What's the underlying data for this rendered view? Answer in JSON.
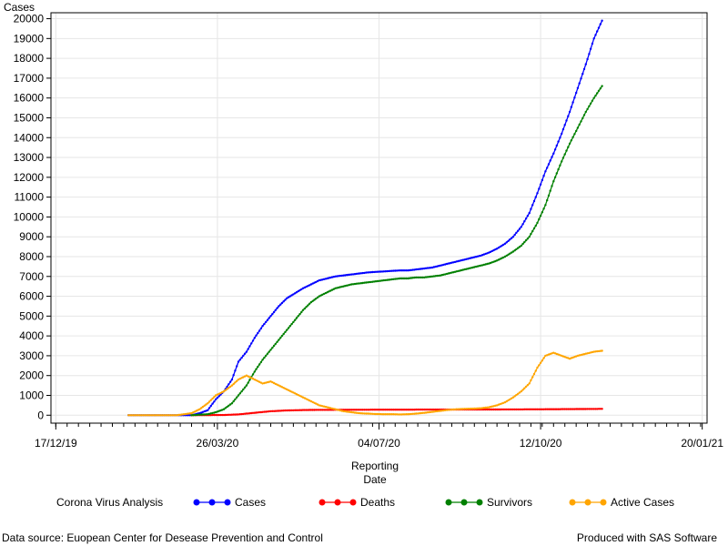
{
  "chart_data": {
    "type": "line",
    "ylabel": "Cases",
    "xlabel_lines": [
      "Reporting",
      "Date"
    ],
    "y_range": [
      -400,
      20300
    ],
    "y_ticks": [
      0,
      1000,
      2000,
      3000,
      4000,
      5000,
      6000,
      7000,
      8000,
      9000,
      10000,
      11000,
      12000,
      13000,
      14000,
      15000,
      16000,
      17000,
      18000,
      19000,
      20000
    ],
    "x_range": [
      "2019-12-14",
      "2021-01-23"
    ],
    "x_ticks": [
      {
        "date": "2019-12-17",
        "label": "17/12/19"
      },
      {
        "date": "2020-03-26",
        "label": "26/03/20"
      },
      {
        "date": "2020-07-04",
        "label": "04/07/20"
      },
      {
        "date": "2020-10-12",
        "label": "12/10/20"
      },
      {
        "date": "2021-01-20",
        "label": "20/01/21"
      }
    ],
    "grid": true,
    "legend_title": "Corona Virus Analysis",
    "legend_position": "bottom",
    "series": [
      {
        "name": "Cases",
        "color": "#0000ff",
        "points": [
          [
            "2020-01-31",
            0
          ],
          [
            "2020-03-01",
            0
          ],
          [
            "2020-03-10",
            0
          ],
          [
            "2020-03-15",
            100
          ],
          [
            "2020-03-20",
            250
          ],
          [
            "2020-03-25",
            800
          ],
          [
            "2020-03-30",
            1200
          ],
          [
            "2020-04-04",
            1800
          ],
          [
            "2020-04-08",
            2700
          ],
          [
            "2020-04-13",
            3200
          ],
          [
            "2020-04-18",
            3900
          ],
          [
            "2020-04-23",
            4500
          ],
          [
            "2020-04-28",
            5000
          ],
          [
            "2020-05-03",
            5500
          ],
          [
            "2020-05-08",
            5900
          ],
          [
            "2020-05-13",
            6150
          ],
          [
            "2020-05-18",
            6400
          ],
          [
            "2020-05-23",
            6600
          ],
          [
            "2020-05-28",
            6800
          ],
          [
            "2020-06-02",
            6900
          ],
          [
            "2020-06-07",
            7000
          ],
          [
            "2020-06-12",
            7050
          ],
          [
            "2020-06-17",
            7100
          ],
          [
            "2020-06-22",
            7150
          ],
          [
            "2020-06-27",
            7200
          ],
          [
            "2020-07-02",
            7230
          ],
          [
            "2020-07-07",
            7250
          ],
          [
            "2020-07-12",
            7280
          ],
          [
            "2020-07-17",
            7300
          ],
          [
            "2020-07-22",
            7300
          ],
          [
            "2020-07-27",
            7350
          ],
          [
            "2020-08-01",
            7400
          ],
          [
            "2020-08-06",
            7450
          ],
          [
            "2020-08-11",
            7550
          ],
          [
            "2020-08-16",
            7650
          ],
          [
            "2020-08-21",
            7750
          ],
          [
            "2020-08-26",
            7850
          ],
          [
            "2020-08-31",
            7950
          ],
          [
            "2020-09-05",
            8050
          ],
          [
            "2020-09-10",
            8200
          ],
          [
            "2020-09-15",
            8400
          ],
          [
            "2020-09-20",
            8650
          ],
          [
            "2020-09-25",
            9000
          ],
          [
            "2020-09-30",
            9500
          ],
          [
            "2020-10-05",
            10200
          ],
          [
            "2020-10-10",
            11200
          ],
          [
            "2020-10-15",
            12300
          ],
          [
            "2020-10-20",
            13200
          ],
          [
            "2020-10-25",
            14200
          ],
          [
            "2020-10-30",
            15300
          ],
          [
            "2020-11-04",
            16500
          ],
          [
            "2020-11-09",
            17700
          ],
          [
            "2020-11-14",
            19000
          ],
          [
            "2020-11-19",
            19900
          ]
        ]
      },
      {
        "name": "Deaths",
        "color": "#ff0000",
        "points": [
          [
            "2020-03-10",
            0
          ],
          [
            "2020-03-20",
            5
          ],
          [
            "2020-03-30",
            10
          ],
          [
            "2020-04-08",
            40
          ],
          [
            "2020-04-18",
            120
          ],
          [
            "2020-04-28",
            200
          ],
          [
            "2020-05-08",
            240
          ],
          [
            "2020-05-18",
            260
          ],
          [
            "2020-05-28",
            270
          ],
          [
            "2020-06-17",
            275
          ],
          [
            "2020-07-17",
            280
          ],
          [
            "2020-08-16",
            285
          ],
          [
            "2020-09-15",
            290
          ],
          [
            "2020-10-15",
            300
          ],
          [
            "2020-11-04",
            310
          ],
          [
            "2020-11-19",
            320
          ]
        ]
      },
      {
        "name": "Survivors",
        "color": "#008000",
        "points": [
          [
            "2020-03-10",
            0
          ],
          [
            "2020-03-20",
            50
          ],
          [
            "2020-03-25",
            150
          ],
          [
            "2020-03-30",
            300
          ],
          [
            "2020-04-04",
            600
          ],
          [
            "2020-04-08",
            1000
          ],
          [
            "2020-04-13",
            1500
          ],
          [
            "2020-04-18",
            2200
          ],
          [
            "2020-04-23",
            2800
          ],
          [
            "2020-04-28",
            3300
          ],
          [
            "2020-05-03",
            3800
          ],
          [
            "2020-05-08",
            4300
          ],
          [
            "2020-05-13",
            4800
          ],
          [
            "2020-05-18",
            5300
          ],
          [
            "2020-05-23",
            5700
          ],
          [
            "2020-05-28",
            6000
          ],
          [
            "2020-06-02",
            6200
          ],
          [
            "2020-06-07",
            6400
          ],
          [
            "2020-06-12",
            6500
          ],
          [
            "2020-06-17",
            6600
          ],
          [
            "2020-06-22",
            6650
          ],
          [
            "2020-06-27",
            6700
          ],
          [
            "2020-07-02",
            6750
          ],
          [
            "2020-07-07",
            6800
          ],
          [
            "2020-07-12",
            6850
          ],
          [
            "2020-07-17",
            6900
          ],
          [
            "2020-07-22",
            6900
          ],
          [
            "2020-07-27",
            6950
          ],
          [
            "2020-08-01",
            6950
          ],
          [
            "2020-08-06",
            7000
          ],
          [
            "2020-08-11",
            7050
          ],
          [
            "2020-08-16",
            7150
          ],
          [
            "2020-08-21",
            7250
          ],
          [
            "2020-08-26",
            7350
          ],
          [
            "2020-08-31",
            7450
          ],
          [
            "2020-09-05",
            7550
          ],
          [
            "2020-09-10",
            7650
          ],
          [
            "2020-09-15",
            7800
          ],
          [
            "2020-09-20",
            8000
          ],
          [
            "2020-09-25",
            8250
          ],
          [
            "2020-09-30",
            8550
          ],
          [
            "2020-10-05",
            9000
          ],
          [
            "2020-10-10",
            9700
          ],
          [
            "2020-10-15",
            10600
          ],
          [
            "2020-10-20",
            11800
          ],
          [
            "2020-10-25",
            12800
          ],
          [
            "2020-10-30",
            13700
          ],
          [
            "2020-11-04",
            14500
          ],
          [
            "2020-11-09",
            15300
          ],
          [
            "2020-11-14",
            16000
          ],
          [
            "2020-11-19",
            16600
          ]
        ]
      },
      {
        "name": "Active Cases",
        "color": "#ffa500",
        "points": [
          [
            "2020-01-31",
            0
          ],
          [
            "2020-03-01",
            0
          ],
          [
            "2020-03-10",
            100
          ],
          [
            "2020-03-15",
            300
          ],
          [
            "2020-03-20",
            600
          ],
          [
            "2020-03-25",
            1000
          ],
          [
            "2020-03-30",
            1200
          ],
          [
            "2020-04-04",
            1500
          ],
          [
            "2020-04-08",
            1800
          ],
          [
            "2020-04-13",
            2000
          ],
          [
            "2020-04-18",
            1800
          ],
          [
            "2020-04-23",
            1600
          ],
          [
            "2020-04-28",
            1700
          ],
          [
            "2020-05-03",
            1500
          ],
          [
            "2020-05-08",
            1300
          ],
          [
            "2020-05-13",
            1100
          ],
          [
            "2020-05-18",
            900
          ],
          [
            "2020-05-23",
            700
          ],
          [
            "2020-05-28",
            500
          ],
          [
            "2020-06-02",
            400
          ],
          [
            "2020-06-07",
            300
          ],
          [
            "2020-06-12",
            200
          ],
          [
            "2020-06-17",
            150
          ],
          [
            "2020-06-22",
            100
          ],
          [
            "2020-06-27",
            80
          ],
          [
            "2020-07-02",
            60
          ],
          [
            "2020-07-07",
            50
          ],
          [
            "2020-07-12",
            50
          ],
          [
            "2020-07-17",
            40
          ],
          [
            "2020-07-22",
            50
          ],
          [
            "2020-07-27",
            80
          ],
          [
            "2020-08-01",
            120
          ],
          [
            "2020-08-06",
            170
          ],
          [
            "2020-08-11",
            220
          ],
          [
            "2020-08-16",
            270
          ],
          [
            "2020-08-21",
            300
          ],
          [
            "2020-08-26",
            320
          ],
          [
            "2020-08-31",
            330
          ],
          [
            "2020-09-05",
            350
          ],
          [
            "2020-09-10",
            400
          ],
          [
            "2020-09-15",
            500
          ],
          [
            "2020-09-20",
            650
          ],
          [
            "2020-09-25",
            900
          ],
          [
            "2020-09-30",
            1200
          ],
          [
            "2020-10-05",
            1600
          ],
          [
            "2020-10-10",
            2400
          ],
          [
            "2020-10-15",
            3000
          ],
          [
            "2020-10-20",
            3150
          ],
          [
            "2020-10-25",
            3000
          ],
          [
            "2020-10-30",
            2850
          ],
          [
            "2020-11-04",
            3000
          ],
          [
            "2020-11-09",
            3100
          ],
          [
            "2020-11-14",
            3200
          ],
          [
            "2020-11-19",
            3250
          ]
        ]
      }
    ]
  },
  "footer": {
    "source": "Data source: Euopean Center for Desease Prevention and Control",
    "produced": "Produced with SAS Software"
  }
}
